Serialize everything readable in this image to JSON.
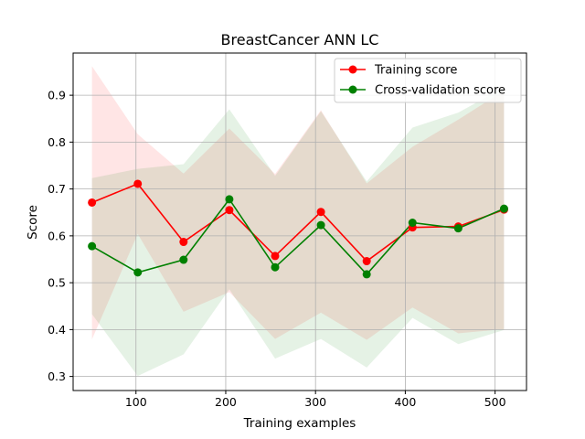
{
  "chart_data": {
    "type": "line",
    "title": "BreastCancer ANN LC",
    "xlabel": "Training examples",
    "ylabel": "Score",
    "xlim": [
      30,
      535
    ],
    "ylim": [
      0.27,
      0.99
    ],
    "xticks": [
      100,
      200,
      300,
      400,
      500
    ],
    "yticks": [
      0.3,
      0.4,
      0.5,
      0.6,
      0.7,
      0.8,
      0.9
    ],
    "grid": true,
    "legend_position": "top-right",
    "x": [
      51,
      102,
      153,
      204,
      255,
      306,
      357,
      408,
      459,
      510
    ],
    "series": [
      {
        "name": "Training score",
        "color": "#ff0000",
        "band_color": "#ff0000",
        "values": [
          0.671,
          0.711,
          0.587,
          0.655,
          0.557,
          0.651,
          0.546,
          0.618,
          0.62,
          0.656
        ],
        "upper": [
          0.962,
          0.817,
          0.733,
          0.829,
          0.732,
          0.868,
          0.712,
          0.79,
          0.848,
          0.91
        ],
        "lower": [
          0.379,
          0.604,
          0.438,
          0.48,
          0.38,
          0.436,
          0.378,
          0.447,
          0.392,
          0.401
        ]
      },
      {
        "name": "Cross-validation score",
        "color": "#008000",
        "band_color": "#008000",
        "values": [
          0.578,
          0.522,
          0.549,
          0.678,
          0.533,
          0.623,
          0.518,
          0.628,
          0.616,
          0.658
        ],
        "upper": [
          0.723,
          0.743,
          0.753,
          0.87,
          0.728,
          0.866,
          0.716,
          0.831,
          0.863,
          0.917
        ],
        "lower": [
          0.433,
          0.301,
          0.347,
          0.486,
          0.338,
          0.38,
          0.319,
          0.425,
          0.369,
          0.399
        ]
      }
    ]
  }
}
